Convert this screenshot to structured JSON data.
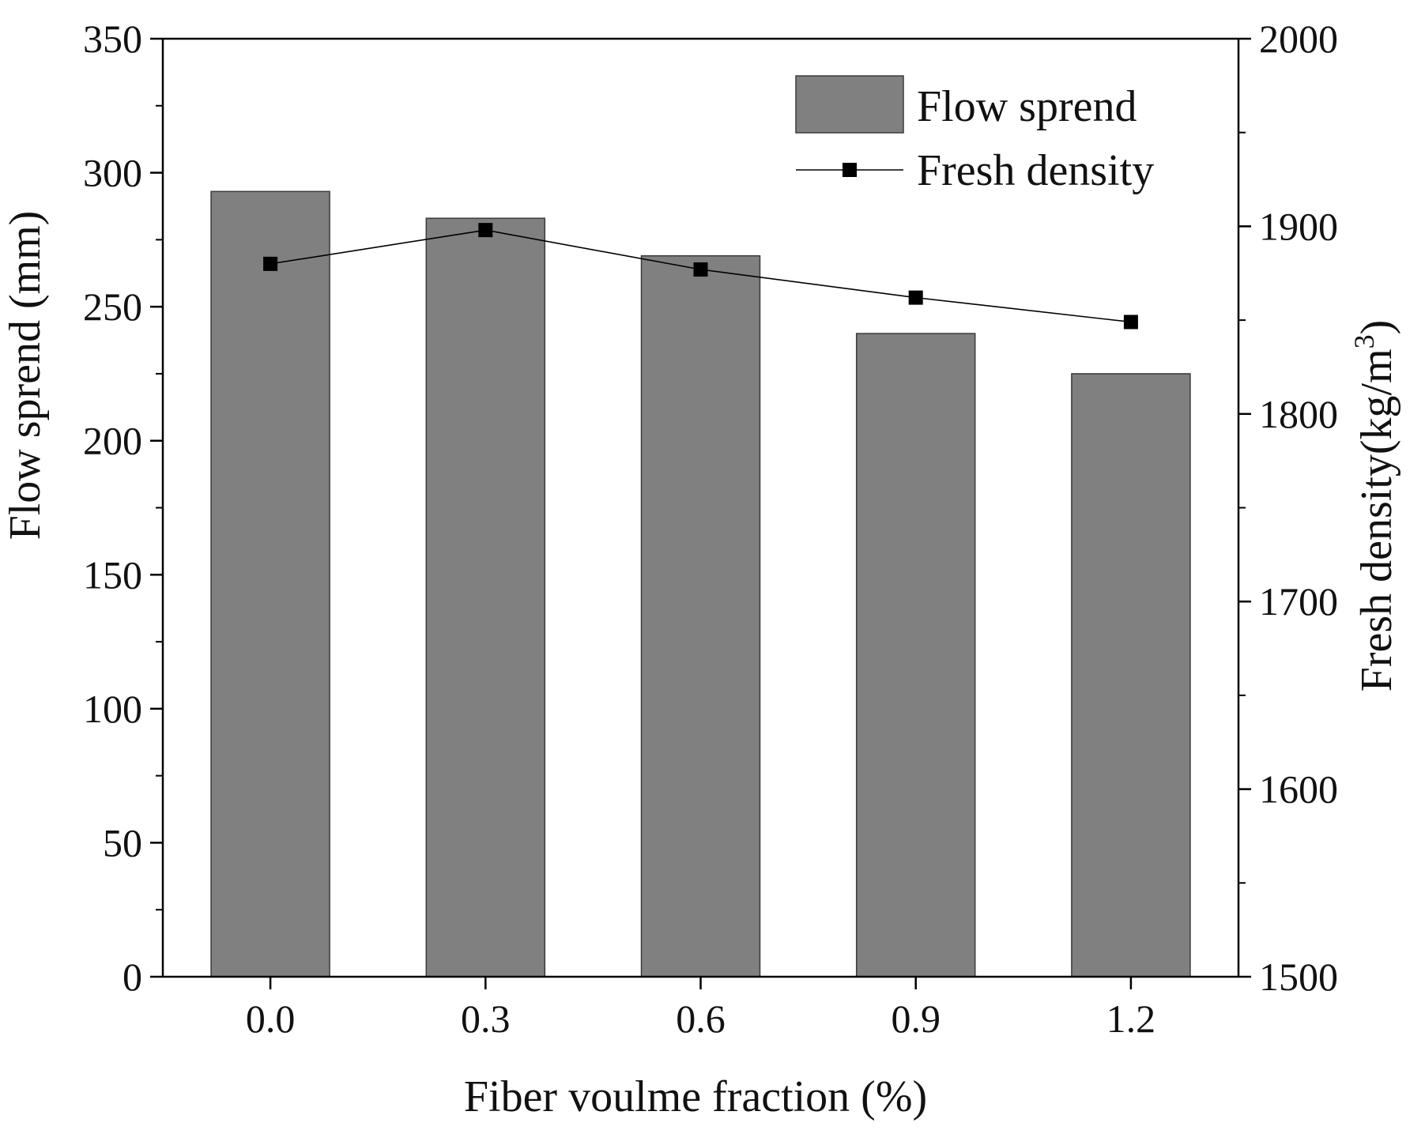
{
  "chart_data": {
    "type": "bar",
    "title": "",
    "xlabel": "Fiber voulme fraction (%)",
    "ylabel": "Flow sprend (mm)",
    "y2label_main": "Fresh density(kg/m",
    "y2label_sup": "3",
    "y2label_close": ")",
    "categories": [
      "0.0",
      "0.3",
      "0.6",
      "0.9",
      "1.2"
    ],
    "ylim": [
      0,
      350
    ],
    "yticks": [
      "0",
      "50",
      "100",
      "150",
      "200",
      "250",
      "300",
      "350"
    ],
    "y2lim": [
      1500,
      2000
    ],
    "y2ticks": [
      "1500",
      "1600",
      "1700",
      "1800",
      "1900",
      "2000"
    ],
    "grid": false,
    "legend_position": "top-right",
    "series": [
      {
        "name": "Flow sprend",
        "type": "bar",
        "axis": "left",
        "values": [
          293,
          283,
          269,
          240,
          225
        ],
        "color": "#808080"
      },
      {
        "name": "Fresh density",
        "type": "line",
        "axis": "right",
        "marker": "square",
        "values": [
          1880,
          1898,
          1877,
          1862,
          1849
        ],
        "color": "#000000"
      }
    ]
  }
}
